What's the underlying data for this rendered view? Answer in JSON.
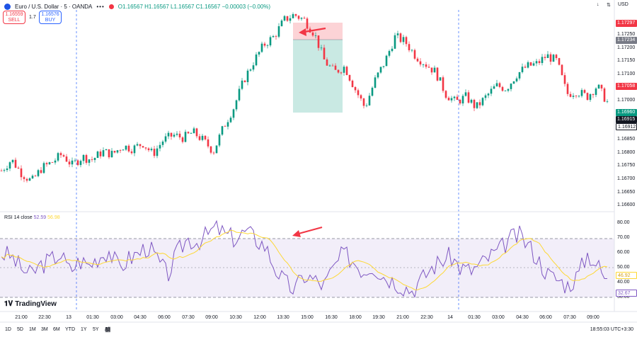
{
  "legend": {
    "title": "Euro / U.S. Dollar · 5 · OANDA",
    "dots": "•••",
    "ohlc": "O1.16567 H1.16567 L1.16567 C1.16567 −0.00003 (−0.00%)"
  },
  "trade": {
    "sell_price": "1.16559",
    "sell_label": "SELL",
    "spread": "1.7",
    "buy_price": "1.16576",
    "buy_label": "BUY"
  },
  "topbar": {
    "arrow_icon": "↓",
    "currency": "USD",
    "settings_icon": "⇅"
  },
  "price_axis": {
    "ticks": [
      "1.17250",
      "1.17200",
      "1.17150",
      "1.17100",
      "1.17050",
      "1.17000",
      "1.16950",
      "1.16900",
      "1.16850",
      "1.16800",
      "1.16750",
      "1.16700",
      "1.16650",
      "1.16600"
    ],
    "tags": [
      {
        "text": "1.17297",
        "color": "#f23645"
      },
      {
        "text": "1.17234",
        "color": "#787b86"
      },
      {
        "text": "1.17058",
        "color": "#f23645"
      },
      {
        "text": "1.16960",
        "color": "#089981"
      },
      {
        "text": "1.16915",
        "color": "#131722"
      },
      {
        "text": "1.16912",
        "color": "#ffffff"
      }
    ]
  },
  "rsi": {
    "label": "RSI 14 close",
    "value1": "52.59",
    "value2": "56.98",
    "ticks": [
      "80.00",
      "70.00",
      "60.00",
      "50.00",
      "40.00",
      "30.00"
    ],
    "tag1": "46.92",
    "tag2": "32.67",
    "line_color": "#7e57c2",
    "ma_color": "#fdd835"
  },
  "time_axis": {
    "labels": [
      "21:00",
      "22:30",
      "13",
      "01:30",
      "03:00",
      "04:30",
      "06:00",
      "07:30",
      "09:00",
      "10:30",
      "12:00",
      "13:30",
      "15:00",
      "16:30",
      "18:00",
      "19:30",
      "21:00",
      "22:30",
      "14",
      "01:30",
      "03:00",
      "04:30",
      "06:00",
      "07:30",
      "09:00"
    ]
  },
  "timeframes": [
    "1D",
    "5D",
    "1M",
    "3M",
    "6M",
    "YTD",
    "1Y",
    "5Y",
    "All"
  ],
  "footer": {
    "clock": "18:55:03 UTC+3:30",
    "brand": "TradingView"
  },
  "colors": {
    "up": "#089981",
    "down": "#f23645",
    "accent": "#2962ff"
  },
  "chart_data": {
    "type": "candlestick",
    "title": "Euro / U.S. Dollar · 5 · OANDA",
    "ylim": [
      1.1657,
      1.1732
    ],
    "close_path": [
      1.1672,
      1.1676,
      1.1671,
      1.1668,
      1.1673,
      1.1675,
      1.1678,
      1.1674,
      1.1677,
      1.1676,
      1.1679,
      1.1678,
      1.1681,
      1.168,
      1.1682,
      1.1678,
      1.1683,
      1.1685,
      1.1684,
      1.1686,
      1.1683,
      1.1679,
      1.1688,
      1.1695,
      1.1705,
      1.1712,
      1.1718,
      1.1721,
      1.1727,
      1.1729,
      1.1727,
      1.1722,
      1.1712,
      1.1708,
      1.171,
      1.1702,
      1.1695,
      1.1705,
      1.1712,
      1.1721,
      1.1719,
      1.1714,
      1.1711,
      1.1708,
      1.17,
      1.1697,
      1.1699,
      1.1695,
      1.1699,
      1.1703,
      1.1702,
      1.1707,
      1.171,
      1.1711,
      1.1714,
      1.1712,
      1.17,
      1.1701,
      1.1699,
      1.1703,
      1.1697
    ],
    "rsi_path": [
      60,
      58,
      50,
      45,
      52,
      55,
      60,
      48,
      55,
      52,
      58,
      62,
      50,
      56,
      60,
      65,
      55,
      45,
      60,
      70,
      68,
      72,
      78,
      72,
      70,
      75,
      70,
      65,
      50,
      40,
      35,
      45,
      42,
      38,
      50,
      60,
      55,
      48,
      52,
      45,
      42,
      38,
      35,
      42,
      50,
      55,
      58,
      50,
      48,
      52,
      58,
      62,
      70,
      72,
      65,
      55,
      45,
      42,
      38,
      45,
      60,
      52,
      40
    ]
  }
}
